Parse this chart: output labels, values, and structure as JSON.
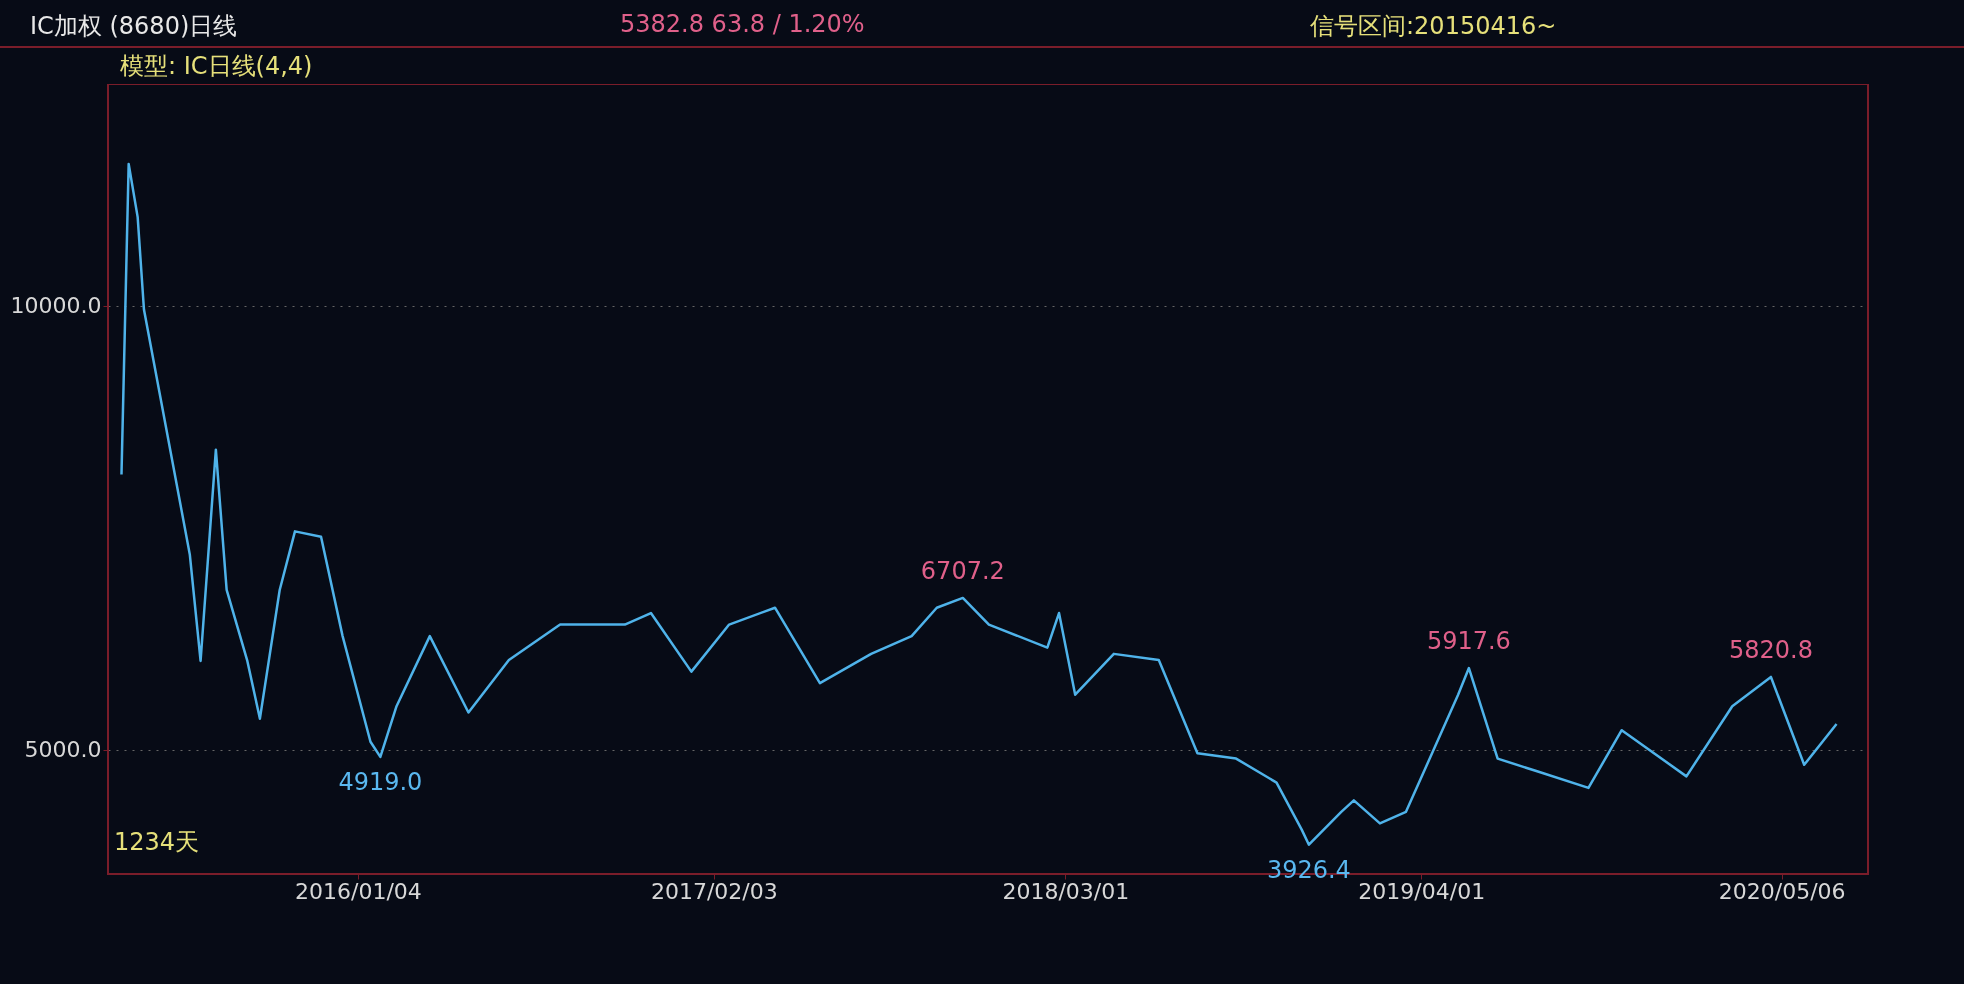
{
  "chart_data": {
    "type": "line",
    "title": "IC加权 (8680)日线",
    "subtitle": "5382.8    63.8 / 1.20%",
    "annotations": [
      "信号区间:20150416~",
      "模型: IC日线(4,4)",
      "1234天",
      {
        "text": "6707.2",
        "x": "2017-11-07",
        "y": 6707.2
      },
      {
        "text": "5917.6",
        "x": "2019-05-24",
        "y": 5917.6
      },
      {
        "text": "5820.8",
        "x": "2020-04-24",
        "y": 5820.8
      },
      {
        "text": "4919.0",
        "x": "2016-01-29",
        "y": 4919.0
      },
      {
        "text": "3926.4",
        "x": "2018-11-27",
        "y": 3926.4
      }
    ],
    "x": [
      "2015-04-16",
      "2015-04-24",
      "2015-05-04",
      "2015-05-11",
      "2015-07-01",
      "2015-07-13",
      "2015-07-30",
      "2015-08-11",
      "2015-09-03",
      "2015-09-17",
      "2015-10-09",
      "2015-10-26",
      "2015-11-24",
      "2015-12-18",
      "2016-01-18",
      "2016-01-29",
      "2016-02-16",
      "2016-03-24",
      "2016-05-06",
      "2016-06-20",
      "2016-08-16",
      "2016-10-27",
      "2016-11-25",
      "2017-01-09",
      "2017-02-20",
      "2017-04-12",
      "2017-06-01",
      "2017-07-28",
      "2017-09-11",
      "2017-10-09",
      "2017-11-07",
      "2017-12-06",
      "2018-02-09",
      "2018-02-22",
      "2018-03-12",
      "2018-04-24",
      "2018-06-13",
      "2018-07-26",
      "2018-09-07",
      "2018-10-22",
      "2018-11-19",
      "2018-11-27",
      "2019-01-02",
      "2019-01-16",
      "2019-02-14",
      "2019-03-15",
      "2019-05-12",
      "2019-05-24",
      "2019-06-25",
      "2019-08-07",
      "2019-10-04",
      "2019-11-10",
      "2020-01-21",
      "2020-03-12",
      "2020-04-24",
      "2020-05-31",
      "2020-07-06"
    ],
    "series": [
      {
        "color": "#4fb3ea",
        "values": [
          8100,
          11600,
          11000,
          9960,
          7200,
          6000,
          8380,
          6800,
          6000,
          5350,
          6800,
          7460,
          7400,
          6280,
          5090,
          4920,
          5490,
          6280,
          5420,
          6010,
          6410,
          6410,
          6540,
          5880,
          6410,
          6600,
          5750,
          6080,
          6280,
          6600,
          6710,
          6410,
          6150,
          6540,
          5620,
          6080,
          6010,
          4960,
          4900,
          4630,
          4100,
          3930,
          4300,
          4430,
          4170,
          4300,
          5620,
          5920,
          4900,
          4760,
          4570,
          5220,
          4700,
          5490,
          5820,
          4830,
          5290
        ]
      }
    ],
    "xlim": [
      "2015-04-01",
      "2020-08-10"
    ],
    "ylim": [
      3600,
      12500
    ],
    "xticks": [
      {
        "value": "2016-01-04",
        "label": "2016/01/04"
      },
      {
        "value": "2017-02-03",
        "label": "2017/02/03"
      },
      {
        "value": "2018-03-01",
        "label": "2018/03/01"
      },
      {
        "value": "2019-04-01",
        "label": "2019/04/01"
      },
      {
        "value": "2020-05-06",
        "label": "2020/05/06"
      }
    ],
    "yticks": [
      {
        "value": 5000,
        "label": "5000.0"
      },
      {
        "value": 10000,
        "label": "10000.0"
      }
    ],
    "grid": "y",
    "marker": "none",
    "line_style": "solid"
  }
}
